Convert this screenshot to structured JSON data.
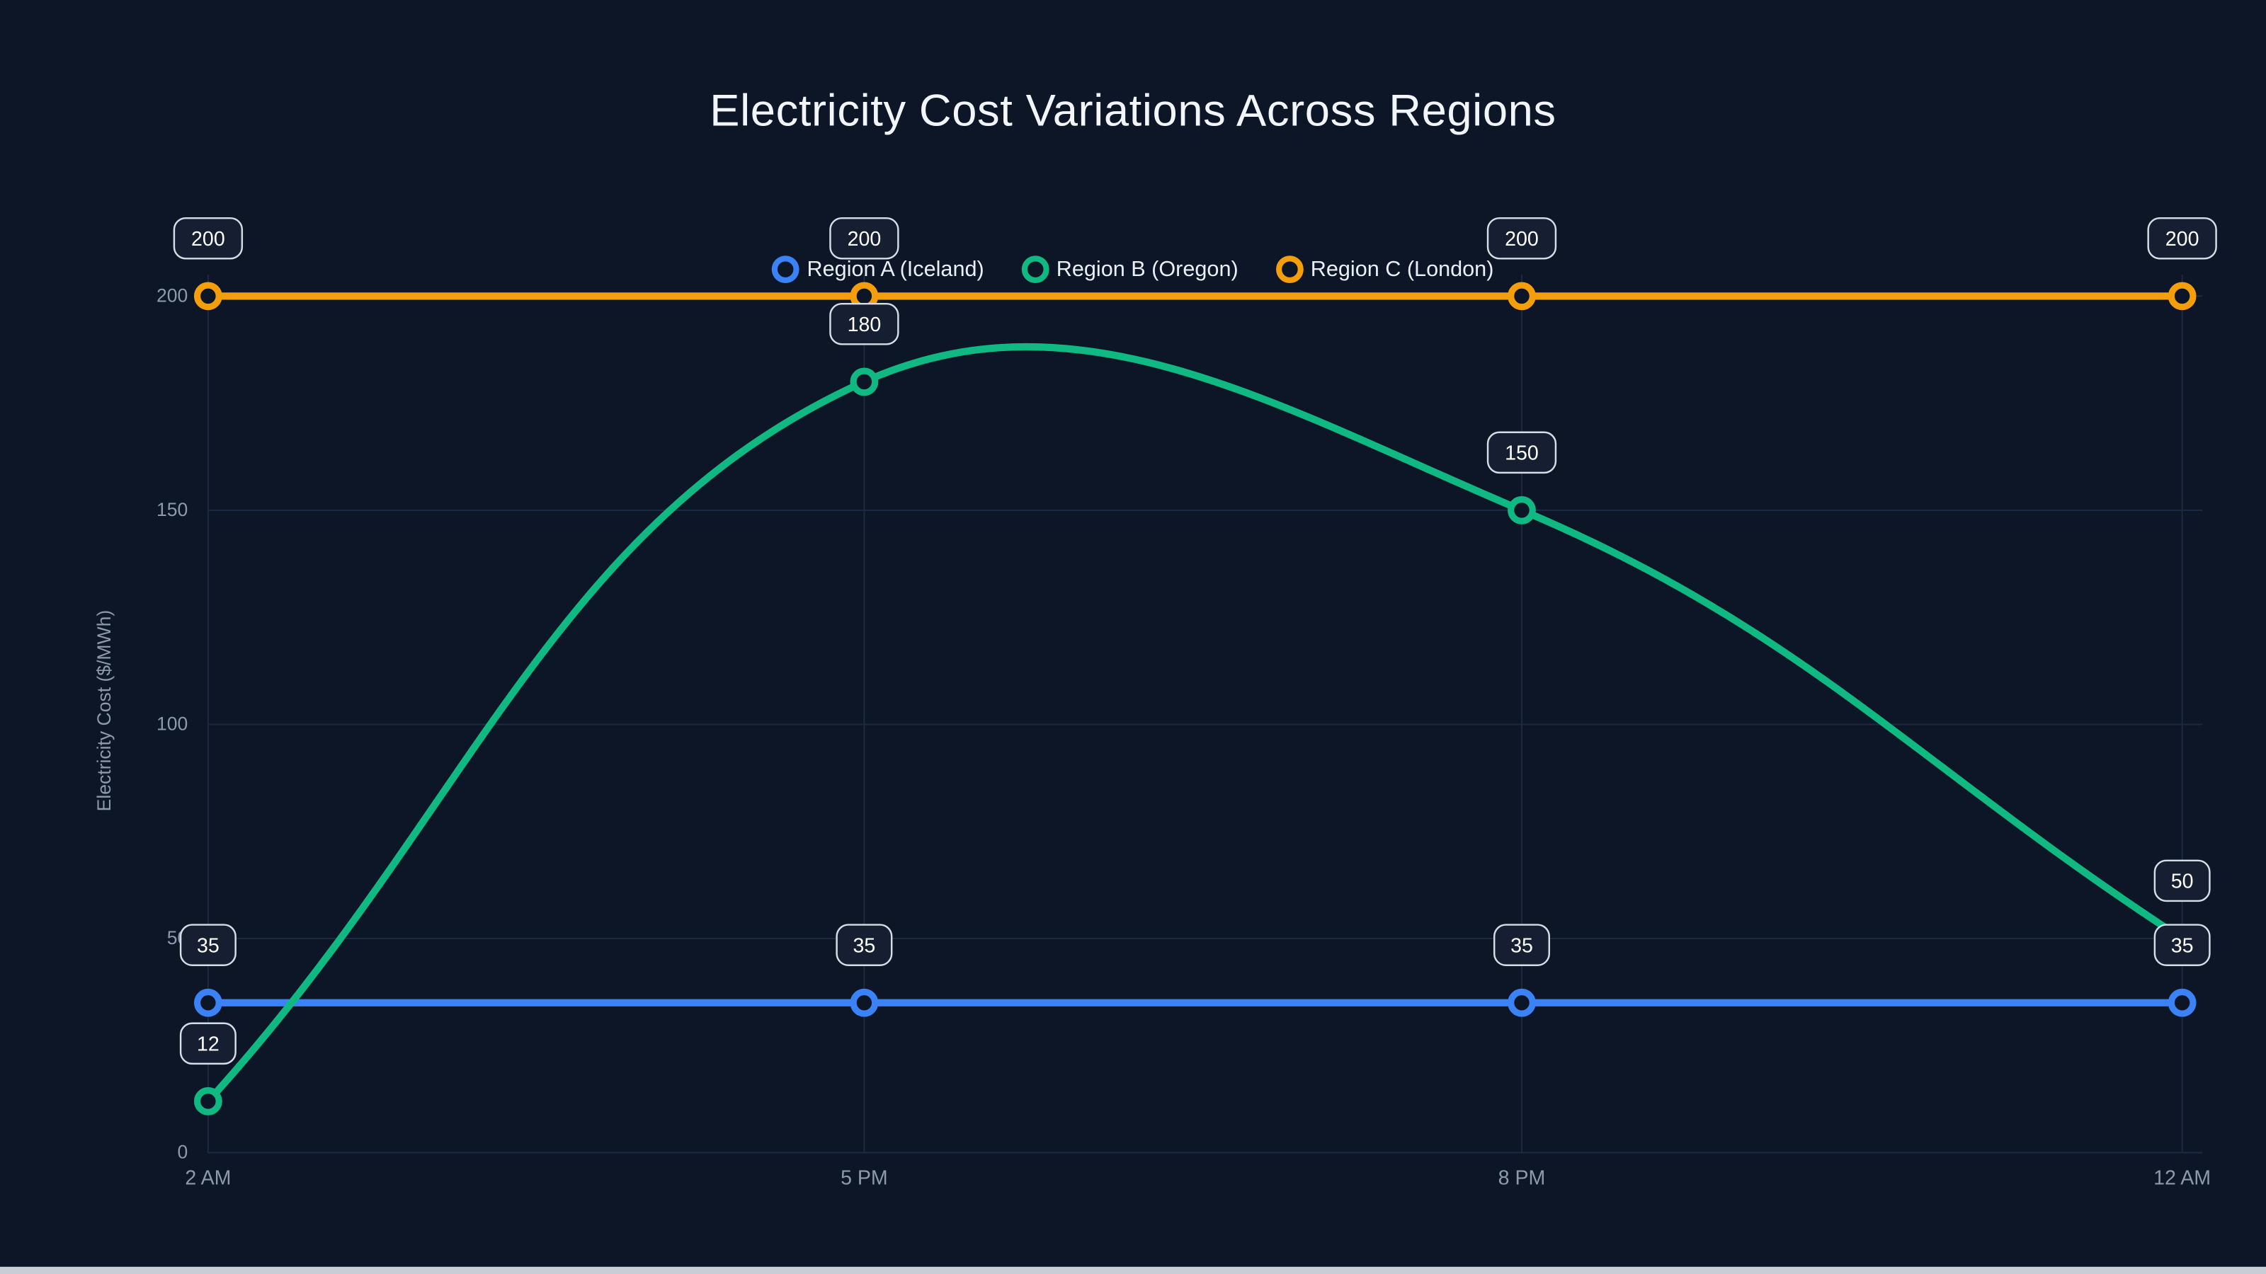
{
  "chart_data": {
    "type": "line",
    "title": "Electricity Cost Variations Across Regions",
    "categories": [
      "2 AM",
      "5 PM",
      "8 PM",
      "12 AM"
    ],
    "xlabel": "",
    "ylabel": "Electricity Cost ($/MWh)",
    "ylim": [
      0,
      200
    ],
    "yticks": [
      0,
      50,
      100,
      150,
      200
    ],
    "grid": true,
    "legend_position": "top",
    "curve": "smooth",
    "point_labels": true,
    "series": [
      {
        "name": "Region A (Iceland)",
        "color": "#3b82f6",
        "values": [
          35,
          35,
          35,
          35
        ]
      },
      {
        "name": "Region B (Oregon)",
        "color": "#10b981",
        "values": [
          12,
          180,
          150,
          50
        ]
      },
      {
        "name": "Region C (London)",
        "color": "#f59e0b",
        "values": [
          200,
          200,
          200,
          200
        ]
      }
    ]
  },
  "theme": {
    "background": "#0d1626",
    "grid_color": "#1d2940",
    "tick_color": "#8d99ac",
    "title_color": "#f2f5fa",
    "legend_text_color": "#eaeef5",
    "badge_fill": "#151f31",
    "badge_border": "#d7dde6",
    "badge_text": "#ffffff",
    "point_fill": "#0d1626"
  }
}
